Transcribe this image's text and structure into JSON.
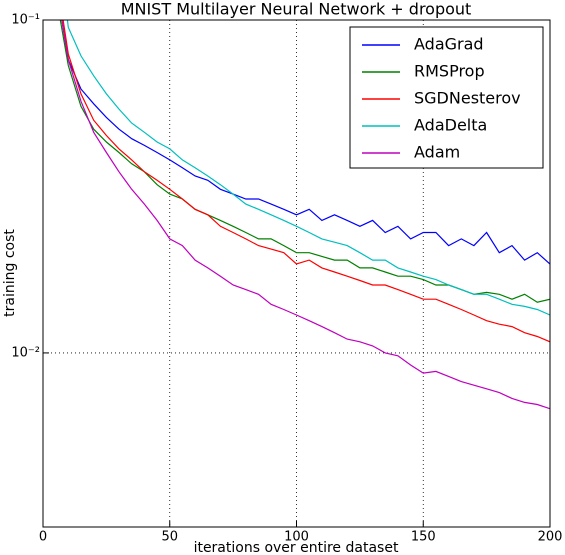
{
  "chart_data": {
    "type": "line",
    "title": "MNIST Multilayer Neural Network + dropout",
    "xlabel": "iterations over entire dataset",
    "ylabel": "training cost",
    "log_y": true,
    "grid": true,
    "legend": "upper right",
    "xlim": [
      0,
      200
    ],
    "xticks": [
      0,
      50,
      100,
      150,
      200
    ],
    "ylim": [
      0.003,
      0.1
    ],
    "yticks": [
      {
        "value": 0.1,
        "label": "10⁻¹"
      },
      {
        "value": 0.01,
        "label": "10⁻²"
      }
    ],
    "x": [
      5,
      10,
      15,
      20,
      25,
      30,
      35,
      40,
      45,
      50,
      55,
      60,
      65,
      70,
      75,
      80,
      85,
      90,
      95,
      100,
      105,
      110,
      115,
      120,
      125,
      130,
      135,
      140,
      145,
      150,
      155,
      160,
      165,
      170,
      175,
      180,
      185,
      190,
      195,
      200
    ],
    "series": [
      {
        "name": "AdaGrad",
        "color": "#0000ff",
        "values": [
          0.13,
          0.076,
          0.062,
          0.056,
          0.051,
          0.047,
          0.044,
          0.042,
          0.04,
          0.038,
          0.036,
          0.034,
          0.033,
          0.031,
          0.03,
          0.029,
          0.029,
          0.028,
          0.027,
          0.026,
          0.027,
          0.025,
          0.026,
          0.025,
          0.024,
          0.025,
          0.023,
          0.024,
          0.022,
          0.023,
          0.023,
          0.021,
          0.022,
          0.021,
          0.023,
          0.02,
          0.021,
          0.019,
          0.02,
          0.0185
        ]
      },
      {
        "name": "RMSProp",
        "color": "#008000",
        "values": [
          0.12,
          0.073,
          0.055,
          0.047,
          0.043,
          0.04,
          0.037,
          0.035,
          0.032,
          0.03,
          0.029,
          0.027,
          0.026,
          0.025,
          0.024,
          0.023,
          0.022,
          0.022,
          0.021,
          0.02,
          0.02,
          0.0195,
          0.019,
          0.019,
          0.018,
          0.018,
          0.0175,
          0.017,
          0.017,
          0.0166,
          0.016,
          0.016,
          0.0155,
          0.015,
          0.0152,
          0.015,
          0.0145,
          0.015,
          0.0142,
          0.0145
        ]
      },
      {
        "name": "SGDNesterov",
        "color": "#ff0000",
        "values": [
          0.14,
          0.079,
          0.06,
          0.05,
          0.045,
          0.041,
          0.038,
          0.035,
          0.033,
          0.031,
          0.029,
          0.027,
          0.026,
          0.024,
          0.023,
          0.022,
          0.021,
          0.0205,
          0.02,
          0.0185,
          0.019,
          0.018,
          0.0175,
          0.017,
          0.0165,
          0.016,
          0.016,
          0.0155,
          0.015,
          0.0145,
          0.0145,
          0.014,
          0.0135,
          0.013,
          0.0125,
          0.0122,
          0.012,
          0.0115,
          0.0112,
          0.0108
        ]
      },
      {
        "name": "AdaDelta",
        "color": "#00bfbf",
        "values": [
          0.2,
          0.095,
          0.078,
          0.068,
          0.06,
          0.054,
          0.049,
          0.046,
          0.043,
          0.041,
          0.038,
          0.036,
          0.034,
          0.032,
          0.03,
          0.028,
          0.027,
          0.026,
          0.025,
          0.024,
          0.023,
          0.022,
          0.0215,
          0.021,
          0.02,
          0.019,
          0.019,
          0.018,
          0.0175,
          0.017,
          0.0166,
          0.016,
          0.0155,
          0.015,
          0.015,
          0.0145,
          0.014,
          0.0138,
          0.0135,
          0.013
        ]
      },
      {
        "name": "Adam",
        "color": "#bf00bf",
        "values": [
          0.13,
          0.076,
          0.057,
          0.046,
          0.04,
          0.035,
          0.031,
          0.028,
          0.025,
          0.022,
          0.021,
          0.019,
          0.018,
          0.017,
          0.016,
          0.0155,
          0.015,
          0.014,
          0.0135,
          0.013,
          0.0125,
          0.012,
          0.0115,
          0.011,
          0.0108,
          0.0105,
          0.01,
          0.0098,
          0.0092,
          0.0087,
          0.0088,
          0.0085,
          0.0082,
          0.008,
          0.0078,
          0.0076,
          0.0073,
          0.0071,
          0.007,
          0.0068
        ]
      }
    ]
  }
}
